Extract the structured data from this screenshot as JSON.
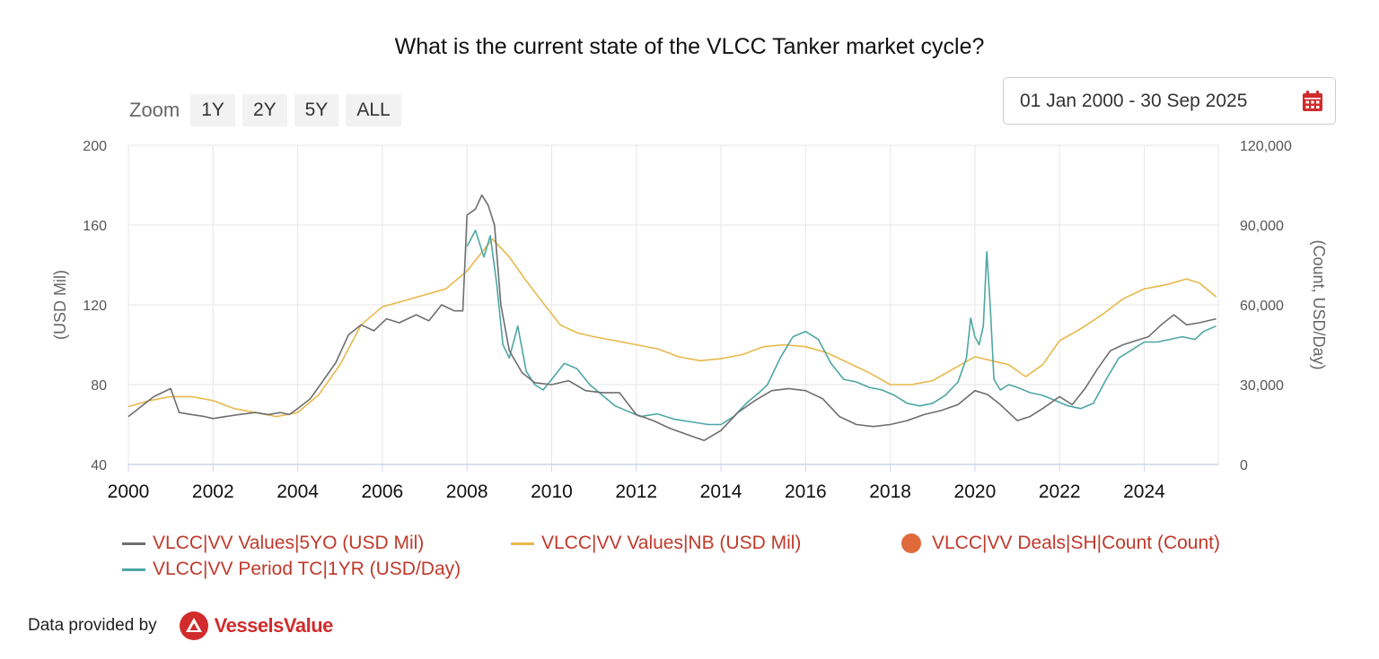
{
  "title": "What is the current state of the VLCC Tanker market cycle?",
  "zoom": {
    "label": "Zoom",
    "buttons": [
      "1Y",
      "2Y",
      "5Y",
      "ALL"
    ]
  },
  "date_range": {
    "value": "01 Jan 2000 - 30 Sep 2025",
    "icon": "calendar-icon"
  },
  "footer": {
    "provided_by": "Data provided by",
    "logo_text": "VesselsValue"
  },
  "colors": {
    "values5yo": "#6e6e6e",
    "nb": "#e8b84b",
    "deals": "#e06a3b",
    "tc": "#4da6a4",
    "legend_text": "#c0392b"
  },
  "chart_data": {
    "type": "line",
    "title": "What is the current state of the VLCC Tanker market cycle?",
    "xlim": [
      2000,
      2025.75
    ],
    "x_ticks": [
      "2000",
      "2002",
      "2004",
      "2006",
      "2008",
      "2010",
      "2012",
      "2014",
      "2016",
      "2018",
      "2020",
      "2022",
      "2024"
    ],
    "ylabel_left": "(USD Mil)",
    "ylim_left": [
      40,
      200
    ],
    "yticks_left": [
      "40",
      "80",
      "120",
      "160",
      "200"
    ],
    "ylabel_right": "(Count, USD/Day)",
    "ylim_right": [
      0,
      120000
    ],
    "yticks_right": [
      "0",
      "30,000",
      "60,000",
      "90,000",
      "120,000"
    ],
    "grid": true,
    "legend_position": "bottom",
    "series": [
      {
        "name": "VLCC|VV Values|5YO (USD Mil)",
        "axis": "left",
        "color": "#6e6e6e",
        "x": [
          2000,
          2000.3,
          2000.6,
          2001,
          2001.2,
          2001.5,
          2001.8,
          2002,
          2002.3,
          2002.6,
          2003,
          2003.3,
          2003.6,
          2003.8,
          2004,
          2004.3,
          2004.6,
          2004.9,
          2005.2,
          2005.5,
          2005.8,
          2006.1,
          2006.4,
          2006.8,
          2007.1,
          2007.4,
          2007.7,
          2007.9,
          2008.0,
          2008.2,
          2008.35,
          2008.5,
          2008.65,
          2008.8,
          2009.0,
          2009.3,
          2009.6,
          2010,
          2010.4,
          2010.8,
          2011.2,
          2011.6,
          2012,
          2012.4,
          2012.8,
          2013.2,
          2013.6,
          2014,
          2014.4,
          2014.8,
          2015.2,
          2015.6,
          2016,
          2016.4,
          2016.8,
          2017.2,
          2017.6,
          2018,
          2018.4,
          2018.8,
          2019.2,
          2019.6,
          2020,
          2020.3,
          2020.6,
          2021,
          2021.3,
          2021.6,
          2022,
          2022.3,
          2022.6,
          2022.9,
          2023.2,
          2023.5,
          2023.8,
          2024.1,
          2024.4,
          2024.7,
          2025,
          2025.3,
          2025.7
        ],
        "y": [
          64,
          69,
          74,
          78,
          66,
          65,
          64,
          63,
          64,
          65,
          66,
          65,
          66,
          65,
          68,
          73,
          82,
          91,
          105,
          110,
          107,
          113,
          111,
          115,
          112,
          120,
          117,
          117,
          165,
          168,
          175,
          170,
          160,
          120,
          97,
          86,
          81,
          80,
          82,
          77,
          76,
          76,
          65,
          62,
          58,
          55,
          52,
          57,
          66,
          72,
          77,
          78,
          77,
          73,
          64,
          60,
          59,
          60,
          62,
          65,
          67,
          70,
          77,
          75,
          70,
          62,
          64,
          68,
          74,
          70,
          78,
          88,
          97,
          100,
          102,
          104,
          110,
          115,
          110,
          111,
          113
        ]
      },
      {
        "name": "VLCC|VV Values|NB (USD Mil)",
        "axis": "left",
        "color": "#e8b84b",
        "x": [
          2000,
          2000.5,
          2001,
          2001.5,
          2002,
          2002.5,
          2003,
          2003.5,
          2004,
          2004.5,
          2005,
          2005.5,
          2006,
          2006.5,
          2007,
          2007.5,
          2008,
          2008.3,
          2008.6,
          2009,
          2009.4,
          2009.8,
          2010.2,
          2010.6,
          2011,
          2011.5,
          2012,
          2012.5,
          2013,
          2013.5,
          2014,
          2014.5,
          2015,
          2015.5,
          2016,
          2016.5,
          2017,
          2017.5,
          2018,
          2018.5,
          2019,
          2019.5,
          2020,
          2020.4,
          2020.8,
          2021.2,
          2021.6,
          2022,
          2022.5,
          2023,
          2023.5,
          2024,
          2024.5,
          2025,
          2025.3,
          2025.7
        ],
        "y": [
          69,
          72,
          74,
          74,
          72,
          68,
          66,
          64,
          66,
          75,
          90,
          110,
          119,
          122,
          125,
          128,
          137,
          145,
          153,
          144,
          132,
          121,
          110,
          106,
          104,
          102,
          100,
          98,
          94,
          92,
          93,
          95,
          99,
          100,
          99,
          96,
          91,
          86,
          80,
          80,
          82,
          88,
          94,
          92,
          90,
          84,
          90,
          102,
          108,
          115,
          123,
          128,
          130,
          133,
          131,
          124
        ]
      },
      {
        "name": "VLCC|VV Deals|SH|Count (Count)",
        "axis": "right",
        "color": "#e06a3b",
        "marker": "circle",
        "x": [],
        "y": []
      },
      {
        "name": "VLCC|VV Period TC|1YR (USD/Day)",
        "axis": "right",
        "color": "#4da6a4",
        "x": [
          2008.0,
          2008.2,
          2008.4,
          2008.55,
          2008.7,
          2008.85,
          2009.0,
          2009.2,
          2009.4,
          2009.6,
          2009.8,
          2010,
          2010.3,
          2010.6,
          2010.9,
          2011.2,
          2011.5,
          2011.8,
          2012.1,
          2012.5,
          2012.9,
          2013.3,
          2013.7,
          2014,
          2014.3,
          2014.6,
          2014.9,
          2015.1,
          2015.4,
          2015.7,
          2016,
          2016.3,
          2016.6,
          2016.9,
          2017.2,
          2017.5,
          2017.8,
          2018.1,
          2018.4,
          2018.7,
          2019,
          2019.3,
          2019.6,
          2019.8,
          2019.9,
          2020.0,
          2020.1,
          2020.2,
          2020.28,
          2020.36,
          2020.45,
          2020.6,
          2020.8,
          2021,
          2021.3,
          2021.6,
          2021.9,
          2022.2,
          2022.5,
          2022.8,
          2023.1,
          2023.4,
          2023.7,
          2024,
          2024.3,
          2024.6,
          2024.9,
          2025.2,
          2025.4,
          2025.7
        ],
        "y": [
          82000,
          88000,
          78000,
          86000,
          68000,
          45000,
          40000,
          52000,
          35000,
          30000,
          28000,
          32000,
          38000,
          36000,
          30000,
          26000,
          22000,
          20000,
          18000,
          19000,
          17000,
          16000,
          15000,
          15000,
          18000,
          23000,
          27000,
          30000,
          40000,
          48000,
          50000,
          47000,
          38000,
          32000,
          31000,
          29000,
          28000,
          26000,
          23000,
          22000,
          23000,
          26000,
          31000,
          40000,
          55000,
          48000,
          45000,
          52000,
          80000,
          60000,
          32000,
          28000,
          30000,
          29000,
          27000,
          26000,
          24000,
          22000,
          21000,
          23000,
          32000,
          40000,
          43000,
          46000,
          46000,
          47000,
          48000,
          47000,
          50000,
          52000
        ]
      }
    ]
  }
}
